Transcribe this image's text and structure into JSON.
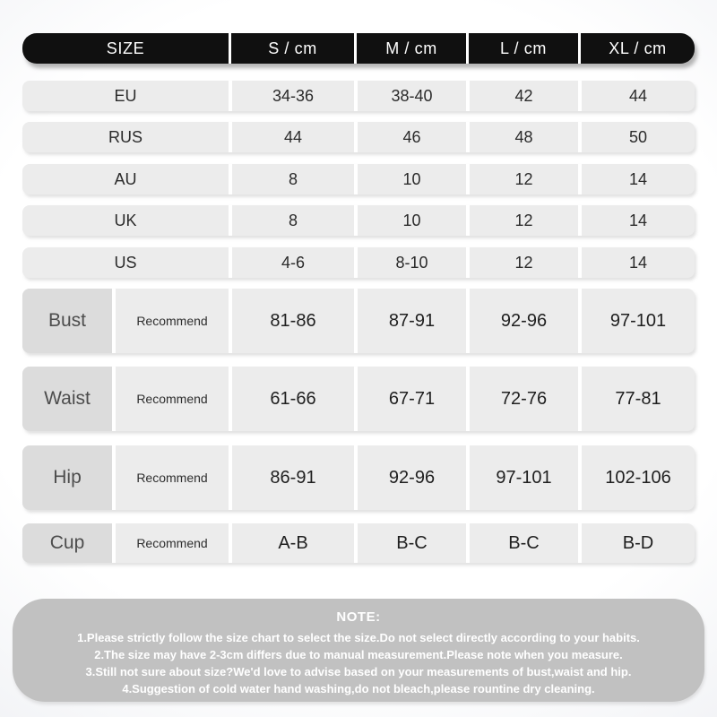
{
  "colors": {
    "header_bg": "#101010",
    "header_text": "#ffffff",
    "row_bg": "#ececec",
    "label_cell_bg": "#dcdcdc",
    "row_text": "#2b2b2b",
    "note_bg": "#c1c1c1",
    "note_text": "#ffffff",
    "page_edge": "#e8eaef"
  },
  "table": {
    "header": [
      "SIZE",
      "S / cm",
      "M / cm",
      "L / cm",
      "XL / cm"
    ],
    "size_rows": [
      {
        "label": "EU",
        "values": [
          "34-36",
          "38-40",
          "42",
          "44"
        ]
      },
      {
        "label": "RUS",
        "values": [
          "44",
          "46",
          "48",
          "50"
        ]
      },
      {
        "label": "AU",
        "values": [
          "8",
          "10",
          "12",
          "14"
        ]
      },
      {
        "label": "UK",
        "values": [
          "8",
          "10",
          "12",
          "14"
        ]
      },
      {
        "label": "US",
        "values": [
          "4-6",
          "8-10",
          "12",
          "14"
        ]
      }
    ],
    "measure_rows": [
      {
        "label": "Bust",
        "hint": "Recommend",
        "values": [
          "81-86",
          "87-91",
          "92-96",
          "97-101"
        ]
      },
      {
        "label": "Waist",
        "hint": "Recommend",
        "values": [
          "61-66",
          "67-71",
          "72-76",
          "77-81"
        ]
      },
      {
        "label": "Hip",
        "hint": "Recommend",
        "values": [
          "86-91",
          "92-96",
          "97-101",
          "102-106"
        ]
      },
      {
        "label": "Cup",
        "hint": "Recommend",
        "values": [
          "A-B",
          "B-C",
          "B-C",
          "B-D"
        ]
      }
    ]
  },
  "note": {
    "title": "NOTE:",
    "lines": [
      "1.Please strictly follow the size chart to select the size.Do not select directly according to your habits.",
      "2.The size may have 2-3cm differs due to manual measurement.Please note when you measure.",
      "3.Still not sure about size?We'd love to advise based on your measurements of bust,waist and hip.",
      "4.Suggestion of cold water hand washing,do not bleach,please rountine dry cleaning."
    ]
  },
  "chart_data": {
    "type": "table",
    "title": "Size chart",
    "columns": [
      "SIZE",
      "S / cm",
      "M / cm",
      "L / cm",
      "XL / cm"
    ],
    "rows": [
      [
        "EU",
        "34-36",
        "38-40",
        "42",
        "44"
      ],
      [
        "RUS",
        "44",
        "46",
        "48",
        "50"
      ],
      [
        "AU",
        "8",
        "10",
        "12",
        "14"
      ],
      [
        "UK",
        "8",
        "10",
        "12",
        "14"
      ],
      [
        "US",
        "4-6",
        "8-10",
        "12",
        "14"
      ],
      [
        "Bust (Recommend)",
        "81-86",
        "87-91",
        "92-96",
        "97-101"
      ],
      [
        "Waist (Recommend)",
        "61-66",
        "67-71",
        "72-76",
        "77-81"
      ],
      [
        "Hip (Recommend)",
        "86-91",
        "92-96",
        "97-101",
        "102-106"
      ],
      [
        "Cup (Recommend)",
        "A-B",
        "B-C",
        "B-C",
        "B-D"
      ]
    ]
  }
}
